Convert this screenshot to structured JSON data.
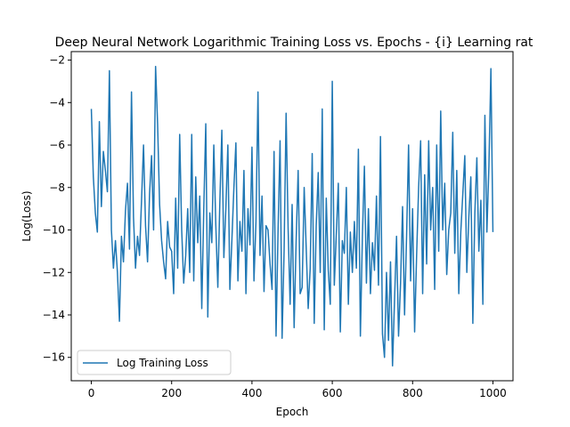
{
  "chart_data": {
    "type": "line",
    "title": "Deep Neural Network Logarithmic Training Loss vs. Epochs - {i} Learning rat",
    "xlabel": "Epoch",
    "ylabel": "Log(Loss)",
    "xlim": [
      -50,
      1050
    ],
    "ylim": [
      -17.1,
      -1.6
    ],
    "xticks": [
      0,
      200,
      400,
      600,
      800,
      1000
    ],
    "yticks": [
      -16,
      -14,
      -12,
      -10,
      -8,
      -6,
      -4,
      -2
    ],
    "grid": false,
    "legend_position": "lower-left",
    "series": [
      {
        "name": "Log Training Loss",
        "color": "#1f77b4",
        "x": [
          0,
          5,
          10,
          15,
          20,
          25,
          30,
          35,
          40,
          45,
          50,
          55,
          60,
          65,
          70,
          75,
          80,
          85,
          90,
          95,
          100,
          105,
          110,
          115,
          120,
          125,
          130,
          135,
          140,
          145,
          150,
          155,
          160,
          165,
          170,
          175,
          180,
          185,
          190,
          195,
          200,
          205,
          210,
          215,
          220,
          225,
          230,
          235,
          240,
          245,
          250,
          255,
          260,
          265,
          270,
          275,
          280,
          285,
          290,
          295,
          300,
          305,
          310,
          315,
          320,
          325,
          330,
          335,
          340,
          345,
          350,
          355,
          360,
          365,
          370,
          375,
          380,
          385,
          390,
          395,
          400,
          405,
          410,
          415,
          420,
          425,
          430,
          435,
          440,
          445,
          450,
          455,
          460,
          465,
          470,
          475,
          480,
          485,
          490,
          495,
          500,
          505,
          510,
          515,
          520,
          525,
          530,
          535,
          540,
          545,
          550,
          555,
          560,
          565,
          570,
          575,
          580,
          585,
          590,
          595,
          600,
          605,
          610,
          615,
          620,
          625,
          630,
          635,
          640,
          645,
          650,
          655,
          660,
          665,
          670,
          675,
          680,
          685,
          690,
          695,
          700,
          705,
          710,
          715,
          720,
          725,
          730,
          735,
          740,
          745,
          750,
          755,
          760,
          765,
          770,
          775,
          780,
          785,
          790,
          795,
          800,
          805,
          810,
          815,
          820,
          825,
          830,
          835,
          840,
          845,
          850,
          855,
          860,
          865,
          870,
          875,
          880,
          885,
          890,
          895,
          900,
          905,
          910,
          915,
          920,
          925,
          930,
          935,
          940,
          945,
          950,
          955,
          960,
          965,
          970,
          975,
          980,
          985,
          990,
          995,
          1000
        ],
        "y": [
          -4.3,
          -7.5,
          -9.2,
          -10.1,
          -4.9,
          -8.9,
          -6.3,
          -7.2,
          -8.2,
          -2.5,
          -10.0,
          -11.8,
          -10.5,
          -12.0,
          -14.3,
          -10.3,
          -11.5,
          -9.1,
          -7.8,
          -10.9,
          -3.5,
          -9.4,
          -11.8,
          -10.3,
          -11.2,
          -8.6,
          -6.0,
          -9.8,
          -11.5,
          -8.3,
          -6.5,
          -10.0,
          -2.3,
          -5.0,
          -8.8,
          -10.5,
          -11.5,
          -12.3,
          -9.6,
          -10.8,
          -11.0,
          -13.0,
          -8.5,
          -11.8,
          -5.5,
          -10.0,
          -12.5,
          -11.2,
          -9.0,
          -12.0,
          -5.5,
          -12.4,
          -7.5,
          -10.6,
          -8.4,
          -13.7,
          -9.0,
          -5.0,
          -14.1,
          -9.2,
          -10.6,
          -6.0,
          -9.8,
          -12.7,
          -8.7,
          -5.3,
          -11.3,
          -9.0,
          -6.0,
          -12.8,
          -10.5,
          -8.0,
          -5.9,
          -12.4,
          -9.6,
          -11.0,
          -7.2,
          -13.0,
          -9.0,
          -10.7,
          -6.1,
          -12.4,
          -9.6,
          -3.5,
          -11.2,
          -8.4,
          -12.9,
          -9.8,
          -10.0,
          -11.6,
          -12.8,
          -6.3,
          -15.0,
          -10.0,
          -5.8,
          -15.1,
          -11.0,
          -4.5,
          -9.9,
          -13.5,
          -8.8,
          -14.6,
          -10.5,
          -7.2,
          -13.0,
          -12.7,
          -8.0,
          -10.8,
          -13.7,
          -11.8,
          -6.4,
          -14.4,
          -9.8,
          -7.3,
          -12.0,
          -4.3,
          -14.7,
          -8.5,
          -11.9,
          -13.5,
          -3.0,
          -12.6,
          -10.2,
          -7.8,
          -14.8,
          -10.5,
          -11.1,
          -8.0,
          -13.5,
          -10.1,
          -12.0,
          -9.6,
          -11.8,
          -6.2,
          -15.0,
          -10.3,
          -7.0,
          -12.5,
          -9.0,
          -13.0,
          -10.6,
          -11.9,
          -8.4,
          -12.6,
          -5.6,
          -14.9,
          -16.0,
          -12.0,
          -15.2,
          -11.5,
          -16.4,
          -13.3,
          -10.3,
          -15.0,
          -12.5,
          -8.9,
          -14.0,
          -10.3,
          -6.0,
          -12.4,
          -9.0,
          -14.8,
          -11.2,
          -8.0,
          -5.8,
          -13.0,
          -7.4,
          -11.6,
          -5.8,
          -10.0,
          -8.0,
          -12.8,
          -6.0,
          -11.0,
          -4.4,
          -10.0,
          -7.8,
          -12.1,
          -10.0,
          -9.2,
          -5.4,
          -11.1,
          -7.2,
          -13.0,
          -10.1,
          -8.3,
          -6.5,
          -12.0,
          -9.4,
          -7.5,
          -14.4,
          -9.2,
          -6.6,
          -11.0,
          -8.6,
          -13.5,
          -4.6,
          -10.1,
          -7.0,
          -2.4,
          -10.1
        ]
      }
    ]
  }
}
